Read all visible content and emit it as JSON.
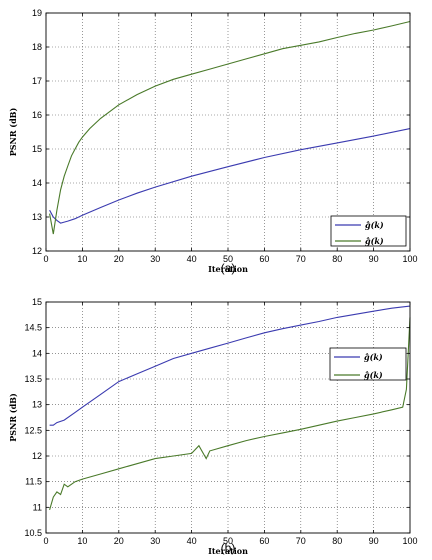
{
  "chart_data": [
    {
      "type": "line",
      "panel_label": "(a)",
      "xlabel": "Iteration",
      "ylabel": "PSNR (dB)",
      "xlim": [
        0,
        100
      ],
      "ylim": [
        12,
        19
      ],
      "xticks": [
        0,
        10,
        20,
        30,
        40,
        50,
        60,
        70,
        80,
        90,
        100
      ],
      "yticks": [
        12,
        13,
        14,
        15,
        16,
        17,
        18,
        19
      ],
      "grid": true,
      "legend_position": "bottom-right",
      "series": [
        {
          "name": "ĝ(k)",
          "color": "#3b3bb0",
          "x": [
            1,
            2,
            3,
            4,
            5,
            6,
            8,
            10,
            15,
            20,
            25,
            30,
            40,
            50,
            60,
            70,
            80,
            90,
            100
          ],
          "values": [
            13.2,
            13.0,
            12.9,
            12.82,
            12.85,
            12.88,
            12.95,
            13.05,
            13.28,
            13.5,
            13.7,
            13.88,
            14.2,
            14.48,
            14.75,
            14.98,
            15.18,
            15.38,
            15.6
          ]
        },
        {
          "name": "ĝ(k)",
          "color": "#4a7a2a",
          "x": [
            1,
            2,
            3,
            4,
            5,
            6,
            7,
            8,
            9,
            10,
            12,
            15,
            20,
            25,
            30,
            35,
            40,
            45,
            50,
            55,
            60,
            65,
            70,
            75,
            80,
            85,
            90,
            95,
            100
          ],
          "values": [
            13.1,
            12.5,
            13.2,
            13.8,
            14.2,
            14.5,
            14.8,
            15.0,
            15.2,
            15.35,
            15.6,
            15.9,
            16.3,
            16.6,
            16.85,
            17.05,
            17.2,
            17.35,
            17.5,
            17.65,
            17.8,
            17.95,
            18.05,
            18.15,
            18.28,
            18.4,
            18.5,
            18.62,
            18.75
          ]
        }
      ]
    },
    {
      "type": "line",
      "panel_label": "(b)",
      "xlabel": "Iteration",
      "ylabel": "PSNR (dB)",
      "xlim": [
        0,
        100
      ],
      "ylim": [
        10.5,
        15
      ],
      "xticks": [
        0,
        10,
        20,
        30,
        40,
        50,
        60,
        70,
        80,
        90,
        100
      ],
      "yticks": [
        10.5,
        11,
        11.5,
        12,
        12.5,
        13,
        13.5,
        14,
        14.5,
        15
      ],
      "grid": true,
      "legend_position": "right",
      "series": [
        {
          "name": "ĝ(k)",
          "color": "#3b3bb0",
          "x": [
            1,
            2,
            3,
            5,
            8,
            10,
            15,
            20,
            25,
            30,
            35,
            40,
            45,
            50,
            55,
            60,
            65,
            70,
            75,
            80,
            85,
            90,
            95,
            100
          ],
          "values": [
            12.6,
            12.6,
            12.65,
            12.7,
            12.85,
            12.95,
            13.2,
            13.45,
            13.6,
            13.75,
            13.9,
            14.0,
            14.1,
            14.2,
            14.3,
            14.4,
            14.48,
            14.55,
            14.62,
            14.7,
            14.76,
            14.82,
            14.88,
            14.92
          ]
        },
        {
          "name": "ĝ(k)",
          "color": "#4a7a2a",
          "x": [
            1,
            2,
            3,
            4,
            5,
            6,
            8,
            10,
            15,
            20,
            25,
            30,
            35,
            40,
            42,
            44,
            45,
            50,
            55,
            60,
            65,
            70,
            75,
            80,
            85,
            90,
            95,
            98,
            99,
            100
          ],
          "values": [
            10.95,
            11.2,
            11.3,
            11.25,
            11.45,
            11.4,
            11.5,
            11.55,
            11.65,
            11.75,
            11.85,
            11.95,
            12.0,
            12.05,
            12.2,
            11.95,
            12.1,
            12.2,
            12.3,
            12.38,
            12.45,
            12.52,
            12.6,
            12.68,
            12.75,
            12.82,
            12.9,
            12.95,
            13.3,
            14.7
          ]
        }
      ]
    }
  ]
}
